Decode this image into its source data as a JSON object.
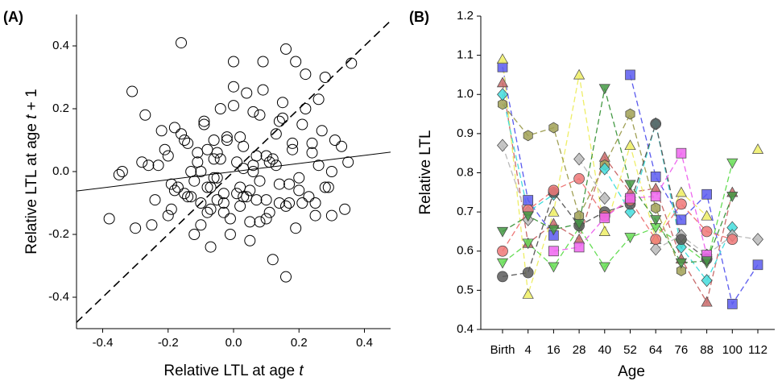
{
  "chart_data": [
    {
      "type": "scatter",
      "panel_label": "(A)",
      "xlabel": [
        "Relative LTL at age ",
        "t"
      ],
      "ylabel": [
        "Relative LTL at age ",
        "t",
        " + 1"
      ],
      "xlim": [
        -0.48,
        0.48
      ],
      "ylim": [
        -0.5,
        0.5
      ],
      "xticks": [
        -0.4,
        -0.2,
        {
          "value": 0,
          "label": "0.0"
        },
        0.2,
        0.4
      ],
      "yticks": [
        -0.4,
        -0.2,
        {
          "value": 0,
          "label": "0.0"
        },
        0.2,
        0.4
      ],
      "x": [
        -0.16,
        -0.31,
        0.0,
        0.09,
        0.16,
        0.19,
        0.22,
        0.28,
        0.36,
        -0.27,
        -0.38,
        0.16,
        0.12,
        -0.07,
        -0.3,
        0.33,
        -0.35,
        -0.34,
        -0.26,
        -0.24,
        -0.22,
        -0.2,
        -0.19,
        -0.18,
        -0.17,
        -0.15,
        -0.14,
        -0.13,
        -0.12,
        -0.11,
        -0.1,
        -0.09,
        -0.08,
        -0.07,
        -0.06,
        -0.05,
        -0.04,
        -0.03,
        -0.02,
        -0.01,
        0.01,
        0.02,
        0.03,
        0.04,
        0.05,
        0.06,
        0.07,
        0.08,
        0.1,
        0.11,
        0.13,
        0.14,
        0.15,
        0.17,
        0.18,
        0.2,
        0.21,
        0.23,
        0.24,
        0.25,
        0.26,
        0.27,
        0.29,
        0.3,
        0.31,
        0.34,
        0.35,
        -0.25,
        -0.21,
        -0.19,
        -0.16,
        -0.13,
        -0.11,
        -0.09,
        -0.08,
        -0.06,
        -0.05,
        -0.03,
        -0.02,
        0.0,
        0.01,
        0.03,
        0.05,
        0.06,
        0.08,
        0.09,
        0.1,
        0.12,
        0.14,
        0.16,
        0.18,
        0.2,
        0.22,
        0.25,
        0.28,
        -0.23,
        -0.18,
        -0.14,
        -0.1,
        -0.07,
        -0.04,
        -0.01,
        0.02,
        0.04,
        0.07,
        0.1,
        0.13,
        0.17,
        0.21,
        0.26,
        0.3,
        -0.28,
        -0.2,
        -0.12,
        -0.06,
        0.0,
        0.05,
        0.11,
        0.15,
        0.19,
        0.24,
        -0.15,
        -0.08,
        -0.03,
        0.03,
        0.08,
        0.14,
        -0.1,
        -0.05,
        0.02,
        0.06
      ],
      "y": [
        0.41,
        0.255,
        0.35,
        0.35,
        0.39,
        0.35,
        0.31,
        0.3,
        0.345,
        0.18,
        -0.15,
        -0.335,
        -0.28,
        -0.24,
        -0.18,
        0.08,
        -0.01,
        0.0,
        0.02,
        -0.09,
        0.13,
        0.05,
        -0.12,
        0.14,
        -0.05,
        0.1,
        -0.08,
        0.0,
        -0.03,
        0.06,
        -0.1,
        0.16,
        -0.05,
        -0.12,
        0.04,
        -0.09,
        0.2,
        -0.07,
        0.1,
        -0.15,
        0.03,
        -0.11,
        0.08,
        0.25,
        -0.06,
        0.02,
        -0.09,
        0.18,
        0.05,
        -0.13,
        0.12,
        -0.04,
        0.22,
        -0.1,
        0.07,
        -0.02,
        0.15,
        -0.08,
        0.09,
        -0.14,
        0.02,
        0.13,
        -0.05,
        0.0,
        0.1,
        -0.12,
        0.03,
        -0.17,
        0.07,
        -0.04,
        0.12,
        -0.08,
        0.03,
        0.15,
        -0.13,
        -0.02,
        0.06,
        -0.1,
        0.11,
        0.27,
        -0.07,
        0.01,
        -0.16,
        0.19,
        -0.03,
        0.26,
        -0.09,
        0.04,
        0.16,
        -0.11,
        0.09,
        -0.06,
        0.2,
        -0.1,
        -0.05,
        0.02,
        -0.06,
        0.09,
        -0.17,
        -0.05,
        0.04,
        -0.2,
        0.11,
        -0.08,
        0.05,
        -0.15,
        0.02,
        -0.04,
        -0.1,
        0.23,
        -0.14,
        0.03,
        -0.14,
        -0.2,
        0.1,
        0.21,
        -0.22,
        0.03,
        0.17,
        -0.18,
        0.06,
        -0.07,
        0.07,
        -0.13,
        -0.08,
        -0.16,
        -0.1,
        0.0,
        -0.02,
        -0.05,
        0.0
      ],
      "fit_line": {
        "x": [
          -0.48,
          0.48
        ],
        "y": [
          -0.062,
          0.062
        ]
      },
      "identity_line": {
        "x": [
          -0.48,
          0.48
        ],
        "y": [
          -0.48,
          0.48
        ]
      }
    },
    {
      "type": "line",
      "panel_label": "(B)",
      "xlabel": "Age",
      "ylabel": "Relative LTL",
      "categories": [
        "Birth",
        "4",
        "16",
        "28",
        "40",
        "52",
        "64",
        "76",
        "88",
        "100",
        "112"
      ],
      "ylim": [
        0.4,
        1.2
      ],
      "yticks": [
        0.4,
        0.5,
        0.6,
        0.7,
        0.8,
        0.9,
        {
          "value": 1,
          "label": "1.0"
        },
        1.1,
        1.2
      ],
      "series": [
        {
          "color": "#5a5aee",
          "marker": "square",
          "values": [
            1.07,
            0.73,
            0.64,
            null,
            null,
            1.05,
            0.79,
            0.68,
            0.745,
            0.465,
            0.565
          ]
        },
        {
          "color": "#c86a6a",
          "marker": "triangle",
          "values": [
            1.03,
            0.62,
            0.67,
            0.63,
            0.84,
            0.75,
            0.76,
            0.58,
            0.47,
            0.75,
            null
          ]
        },
        {
          "color": "#eeee66",
          "marker": "triangle",
          "values": [
            1.09,
            0.49,
            0.7,
            1.05,
            0.65,
            0.87,
            0.63,
            0.75,
            0.69,
            null,
            0.86
          ]
        },
        {
          "color": "#66dd55",
          "marker": "triangle-down",
          "values": [
            0.57,
            0.62,
            0.56,
            0.66,
            0.56,
            0.635,
            0.66,
            0.62,
            0.57,
            0.825,
            null
          ]
        },
        {
          "color": "#a0a055",
          "marker": "hexagon",
          "values": [
            0.975,
            0.895,
            0.915,
            0.69,
            0.82,
            0.95,
            0.71,
            0.55,
            null,
            null,
            null
          ]
        },
        {
          "color": "#44dddd",
          "marker": "diamond",
          "values": [
            1.0,
            0.7,
            0.745,
            null,
            0.81,
            0.7,
            0.925,
            0.61,
            0.525,
            0.66,
            null
          ]
        },
        {
          "color": "#bbbbbb",
          "marker": "diamond",
          "values": [
            0.87,
            0.68,
            null,
            0.835,
            0.735,
            null,
            0.605,
            0.64,
            0.59,
            0.64,
            0.63
          ]
        },
        {
          "color": "#5a5a5a",
          "marker": "circle",
          "values": [
            0.535,
            0.545,
            0.75,
            0.665,
            0.7,
            0.72,
            0.925,
            0.63,
            0.58,
            null,
            null
          ]
        },
        {
          "color": "#ee7777",
          "marker": "circle",
          "values": [
            0.6,
            0.705,
            0.755,
            0.785,
            0.69,
            0.73,
            0.63,
            0.72,
            0.65,
            0.63,
            null
          ]
        },
        {
          "color": "#ee66ee",
          "marker": "square",
          "values": [
            null,
            null,
            0.6,
            0.61,
            0.685,
            0.735,
            0.74,
            0.85,
            0.59,
            null,
            null
          ]
        },
        {
          "color": "#449944",
          "marker": "triangle-down",
          "values": [
            0.65,
            0.69,
            0.655,
            0.67,
            1.015,
            0.77,
            0.68,
            0.57,
            0.575,
            0.74,
            null
          ]
        }
      ]
    }
  ]
}
